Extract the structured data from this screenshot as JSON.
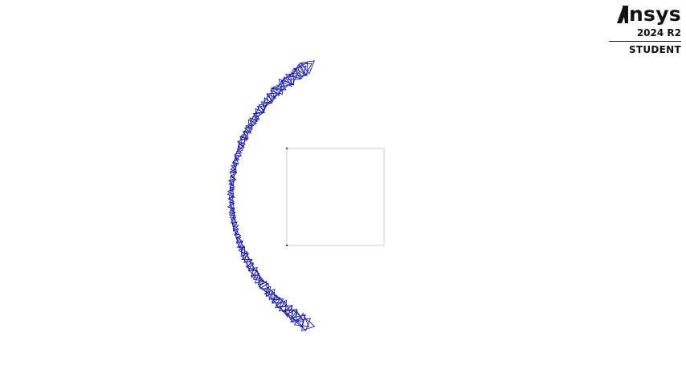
{
  "brand": {
    "name": "nsys",
    "version": "2024 R2",
    "edition": "STUDENT",
    "icon": "ansys-chevron-icon"
  },
  "colors": {
    "mesh_edge": "#1a1aa8",
    "outline": "#c8c8c8",
    "background": "#ffffff",
    "text": "#111111"
  }
}
